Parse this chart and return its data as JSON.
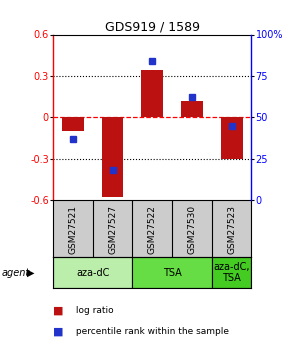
{
  "title": "GDS919 / 1589",
  "samples": [
    "GSM27521",
    "GSM27527",
    "GSM27522",
    "GSM27530",
    "GSM27523"
  ],
  "log_ratios": [
    -0.1,
    -0.58,
    0.34,
    0.12,
    -0.3
  ],
  "percentile_ranks": [
    37,
    18,
    84,
    62,
    45
  ],
  "ylim_left": [
    -0.6,
    0.6
  ],
  "ylim_right": [
    0,
    100
  ],
  "yticks_left": [
    -0.6,
    -0.3,
    0.0,
    0.3,
    0.6
  ],
  "yticks_right": [
    0,
    25,
    50,
    75,
    100
  ],
  "ytick_labels_right": [
    "0",
    "25",
    "50",
    "75",
    "100%"
  ],
  "hlines": [
    0.3,
    0.0,
    -0.3
  ],
  "hline_colors": [
    "black",
    "red",
    "black"
  ],
  "hline_styles": [
    "dotted",
    "dashed",
    "dotted"
  ],
  "bar_color": "#bb1111",
  "dot_color": "#2233cc",
  "bar_width": 0.55,
  "agent_groups": [
    {
      "label": "aza-dC",
      "indices": [
        0,
        1
      ],
      "color": "#bbeeaa"
    },
    {
      "label": "TSA",
      "indices": [
        2,
        3
      ],
      "color": "#66dd44"
    },
    {
      "label": "aza-dC,\nTSA",
      "indices": [
        4
      ],
      "color": "#44cc22"
    }
  ],
  "sample_box_color": "#cccccc",
  "legend_items": [
    {
      "color": "#bb1111",
      "label": " log ratio"
    },
    {
      "color": "#2233cc",
      "label": " percentile rank within the sample"
    }
  ],
  "background_color": "#ffffff"
}
